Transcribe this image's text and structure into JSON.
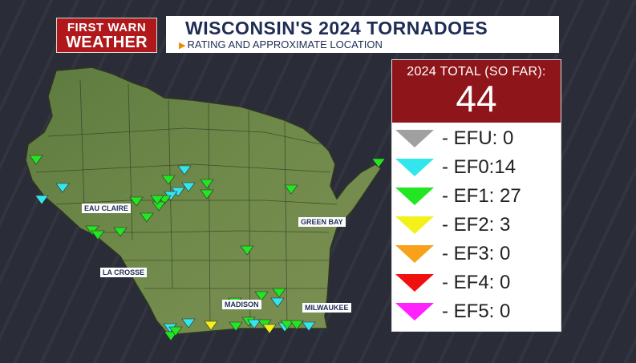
{
  "brand": {
    "line1": "FIRST WARN",
    "line2": "WEATHER"
  },
  "title": {
    "main": "WISCONSIN'S 2024 TORNADOES",
    "subtitle": "RATING AND APPROXIMATE LOCATION"
  },
  "total": {
    "label": "2024 TOTAL (SO FAR):",
    "value": "44"
  },
  "legend": [
    {
      "label": "- EFU: 0",
      "color": "#a0a0a0"
    },
    {
      "label": "- EF0:14",
      "color": "#33e6ee"
    },
    {
      "label": "- EF1: 27",
      "color": "#22e622"
    },
    {
      "label": "- EF2: 3",
      "color": "#f2f21a"
    },
    {
      "label": "- EF3: 0",
      "color": "#f7a21a"
    },
    {
      "label": "- EF4: 0",
      "color": "#f01010"
    },
    {
      "label": "- EF5: 0",
      "color": "#ff22ff"
    }
  ],
  "cities": [
    "EAU CLAIRE",
    "GREEN BAY",
    "LA CROSSE",
    "MADISON",
    "MILWAUKEE"
  ]
}
